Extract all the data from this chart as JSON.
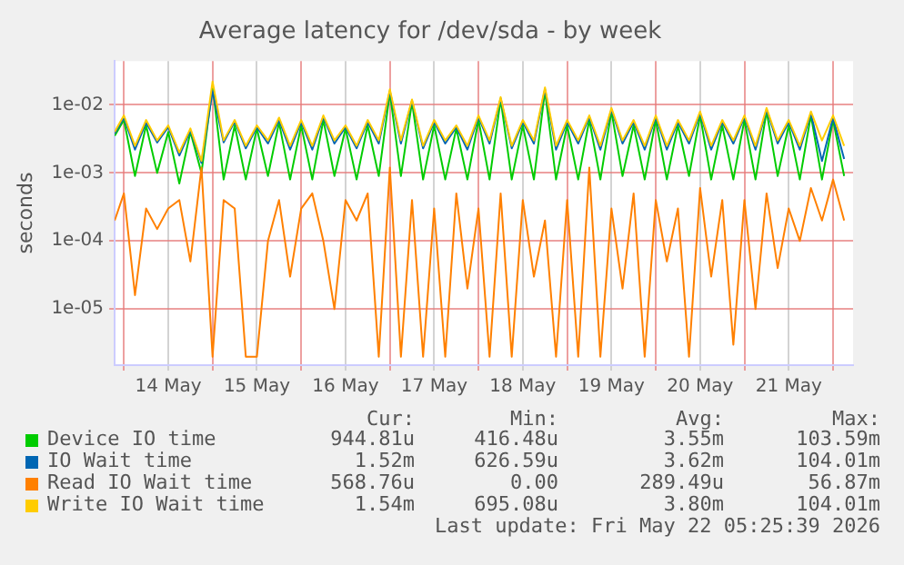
{
  "chart_data": {
    "type": "line",
    "title": "Average latency for /dev/sda - by week",
    "ylabel": "seconds",
    "log": "y",
    "grid": true,
    "legend": "bottom",
    "marker": "none",
    "line_style": "solid",
    "x": [
      "2026-05-13T21:30",
      "2026-05-14T00:00",
      "2026-05-14T03:00",
      "2026-05-14T06:00",
      "2026-05-14T09:00",
      "2026-05-14T12:00",
      "2026-05-14T15:00",
      "2026-05-14T18:00",
      "2026-05-14T21:00",
      "2026-05-15T00:00",
      "2026-05-15T03:00",
      "2026-05-15T06:00",
      "2026-05-15T09:00",
      "2026-05-15T12:00",
      "2026-05-15T15:00",
      "2026-05-15T18:00",
      "2026-05-15T21:00",
      "2026-05-16T00:00",
      "2026-05-16T03:00",
      "2026-05-16T06:00",
      "2026-05-16T09:00",
      "2026-05-16T12:00",
      "2026-05-16T15:00",
      "2026-05-16T18:00",
      "2026-05-16T21:00",
      "2026-05-17T00:00",
      "2026-05-17T03:00",
      "2026-05-17T06:00",
      "2026-05-17T09:00",
      "2026-05-17T12:00",
      "2026-05-17T15:00",
      "2026-05-17T18:00",
      "2026-05-17T21:00",
      "2026-05-18T00:00",
      "2026-05-18T03:00",
      "2026-05-18T06:00",
      "2026-05-18T09:00",
      "2026-05-18T12:00",
      "2026-05-18T15:00",
      "2026-05-18T18:00",
      "2026-05-18T21:00",
      "2026-05-19T00:00",
      "2026-05-19T03:00",
      "2026-05-19T06:00",
      "2026-05-19T09:00",
      "2026-05-19T12:00",
      "2026-05-19T15:00",
      "2026-05-19T18:00",
      "2026-05-19T21:00",
      "2026-05-20T00:00",
      "2026-05-20T03:00",
      "2026-05-20T06:00",
      "2026-05-20T09:00",
      "2026-05-20T12:00",
      "2026-05-20T15:00",
      "2026-05-20T18:00",
      "2026-05-20T21:00",
      "2026-05-21T00:00",
      "2026-05-21T03:00",
      "2026-05-21T06:00",
      "2026-05-21T09:00",
      "2026-05-21T12:00",
      "2026-05-21T15:00",
      "2026-05-21T18:00",
      "2026-05-21T21:00",
      "2026-05-22T00:00",
      "2026-05-22T03:00"
    ],
    "xlim": [
      "2026-05-13T21:30",
      "2026-05-22T05:25"
    ],
    "xticks": [
      {
        "value": "2026-05-14T00:00",
        "label": null
      },
      {
        "value": "2026-05-14T12:00",
        "label": "14 May"
      },
      {
        "value": "2026-05-15T00:00",
        "label": null
      },
      {
        "value": "2026-05-15T12:00",
        "label": "15 May"
      },
      {
        "value": "2026-05-16T00:00",
        "label": null
      },
      {
        "value": "2026-05-16T12:00",
        "label": "16 May"
      },
      {
        "value": "2026-05-17T00:00",
        "label": null
      },
      {
        "value": "2026-05-17T12:00",
        "label": "17 May"
      },
      {
        "value": "2026-05-18T00:00",
        "label": null
      },
      {
        "value": "2026-05-18T12:00",
        "label": "18 May"
      },
      {
        "value": "2026-05-19T00:00",
        "label": null
      },
      {
        "value": "2026-05-19T12:00",
        "label": "19 May"
      },
      {
        "value": "2026-05-20T00:00",
        "label": null
      },
      {
        "value": "2026-05-20T12:00",
        "label": "20 May"
      },
      {
        "value": "2026-05-21T00:00",
        "label": null
      },
      {
        "value": "2026-05-21T12:00",
        "label": "21 May"
      },
      {
        "value": "2026-05-22T00:00",
        "label": null
      }
    ],
    "ylim": [
      1.5e-06,
      0.044
    ],
    "yticks": [
      {
        "value": 1e-05,
        "label": "1e-05"
      },
      {
        "value": 0.0001,
        "label": "1e-04"
      },
      {
        "value": 0.001,
        "label": "1e-03"
      },
      {
        "value": 0.01,
        "label": "1e-02"
      }
    ],
    "series": [
      {
        "name": "Device IO time",
        "color": "#00cc00",
        "values": [
          0.0035,
          0.006,
          0.0009,
          0.005,
          0.001,
          0.004,
          0.0007,
          0.004,
          0.001,
          0.019,
          0.0008,
          0.005,
          0.0008,
          0.0045,
          0.0009,
          0.0055,
          0.0008,
          0.005,
          0.0008,
          0.006,
          0.0009,
          0.0045,
          0.0008,
          0.005,
          0.0009,
          0.015,
          0.0009,
          0.011,
          0.0008,
          0.005,
          0.0008,
          0.0045,
          0.0008,
          0.006,
          0.0008,
          0.012,
          0.0008,
          0.005,
          0.0008,
          0.016,
          0.0008,
          0.005,
          0.0008,
          0.006,
          0.0008,
          0.008,
          0.0009,
          0.005,
          0.0008,
          0.006,
          0.0008,
          0.005,
          0.0009,
          0.007,
          0.0008,
          0.005,
          0.0008,
          0.006,
          0.0008,
          0.008,
          0.0009,
          0.005,
          0.0008,
          0.007,
          0.0008,
          0.006,
          0.0009
        ]
      },
      {
        "name": "IO Wait time",
        "color": "#0066b3",
        "values": [
          0.0038,
          0.0065,
          0.0022,
          0.0055,
          0.0028,
          0.0047,
          0.0018,
          0.0042,
          0.0014,
          0.016,
          0.0028,
          0.0057,
          0.0023,
          0.0047,
          0.0027,
          0.006,
          0.0022,
          0.0056,
          0.0022,
          0.0066,
          0.0027,
          0.0047,
          0.0023,
          0.0056,
          0.0027,
          0.016,
          0.0027,
          0.0115,
          0.0023,
          0.0056,
          0.0027,
          0.0047,
          0.0022,
          0.0066,
          0.0027,
          0.0125,
          0.0023,
          0.0056,
          0.0027,
          0.017,
          0.0022,
          0.0056,
          0.0027,
          0.0066,
          0.0022,
          0.0085,
          0.0027,
          0.0056,
          0.0022,
          0.0066,
          0.0022,
          0.0056,
          0.0027,
          0.0075,
          0.0022,
          0.0056,
          0.0027,
          0.0066,
          0.0022,
          0.0085,
          0.0027,
          0.0056,
          0.0022,
          0.0075,
          0.0015,
          0.0065,
          0.0016
        ]
      },
      {
        "name": "Read IO Wait time",
        "color": "#ff8000",
        "values": [
          0.0002,
          0.0005,
          1.6e-05,
          0.0003,
          0.00015,
          0.0003,
          0.0004,
          5e-05,
          0.0012,
          2e-06,
          0.0004,
          0.0003,
          2e-06,
          2e-06,
          0.0001,
          0.0004,
          3e-05,
          0.0003,
          0.0005,
          0.0001,
          1e-05,
          0.0004,
          0.0002,
          0.0005,
          2e-06,
          0.0012,
          2e-06,
          0.0004,
          2e-06,
          0.0003,
          2e-06,
          0.0005,
          2e-05,
          0.0003,
          2e-06,
          0.0005,
          2e-06,
          0.0004,
          3e-05,
          0.0002,
          2e-06,
          0.0004,
          2e-06,
          0.0012,
          2e-06,
          0.0003,
          2e-05,
          0.0005,
          2e-06,
          0.0004,
          5e-05,
          0.0003,
          2e-06,
          0.0006,
          3e-05,
          0.0004,
          3e-06,
          0.0004,
          1e-05,
          0.0005,
          4e-05,
          0.0003,
          0.0001,
          0.0006,
          0.0002,
          0.0008,
          0.0002
        ]
      },
      {
        "name": "Write IO Wait time",
        "color": "#ffcc00",
        "values": [
          0.004,
          0.007,
          0.0025,
          0.006,
          0.003,
          0.005,
          0.002,
          0.0045,
          0.0015,
          0.022,
          0.003,
          0.006,
          0.0025,
          0.005,
          0.003,
          0.0065,
          0.0025,
          0.006,
          0.0025,
          0.007,
          0.003,
          0.005,
          0.0025,
          0.006,
          0.003,
          0.017,
          0.003,
          0.012,
          0.0025,
          0.006,
          0.003,
          0.005,
          0.0025,
          0.007,
          0.003,
          0.013,
          0.0025,
          0.006,
          0.003,
          0.018,
          0.0025,
          0.006,
          0.003,
          0.007,
          0.0025,
          0.009,
          0.003,
          0.006,
          0.0025,
          0.007,
          0.0025,
          0.006,
          0.003,
          0.008,
          0.0025,
          0.006,
          0.003,
          0.007,
          0.0025,
          0.009,
          0.003,
          0.006,
          0.0025,
          0.008,
          0.003,
          0.007,
          0.0025
        ]
      }
    ],
    "annotations": [
      "Cur:",
      "Min:",
      "Avg:",
      "Max:",
      "944.81u",
      "416.48u",
      "3.55m",
      "103.59m",
      "1.52m",
      "626.59u",
      "3.62m",
      "104.01m",
      "568.76u",
      "0.00",
      "289.49u",
      "56.87m",
      "1.54m",
      "695.08u",
      "3.80m",
      "104.01m",
      "Last update: Fri May 22 05:25:39 2026"
    ]
  }
}
